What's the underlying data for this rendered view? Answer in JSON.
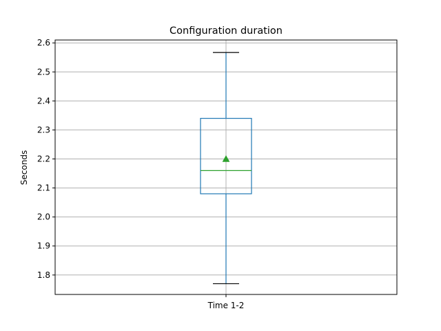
{
  "chart_data": {
    "type": "box",
    "title": "Configuration duration",
    "xlabel": "",
    "ylabel": "Seconds",
    "categories": [
      "Time 1-2"
    ],
    "boxes": [
      {
        "category": "Time 1-2",
        "whisker_low": 1.77,
        "q1": 2.08,
        "median": 2.16,
        "q3": 2.34,
        "whisker_high": 2.567,
        "mean": 2.2
      }
    ],
    "ylim": [
      1.733,
      2.61
    ],
    "yticks": [
      1.8,
      1.9,
      2.0,
      2.1,
      2.2,
      2.3,
      2.4,
      2.5,
      2.6
    ],
    "ytick_labels": [
      "1.8",
      "1.9",
      "2.0",
      "2.1",
      "2.2",
      "2.3",
      "2.4",
      "2.5",
      "2.6"
    ],
    "grid": true,
    "colors": {
      "box": "#1f77b4",
      "median": "#2ca02c",
      "mean_marker": "#2ca02c",
      "caps": "#000000",
      "grid": "#b0b0b0"
    }
  }
}
